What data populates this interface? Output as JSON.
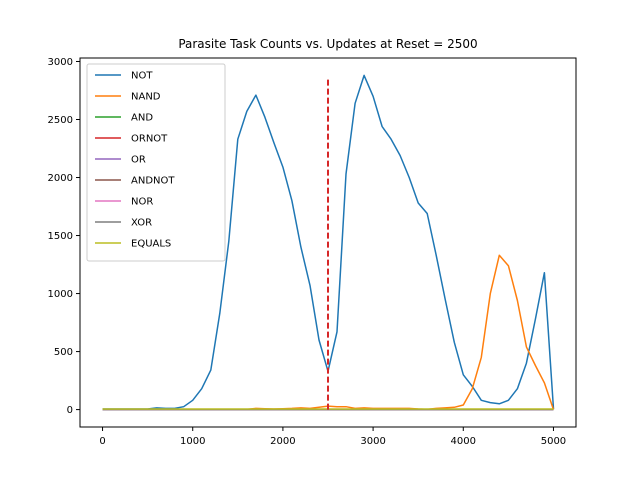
{
  "chart_data": {
    "type": "line",
    "title": "Parasite Task Counts vs. Updates at Reset = 2500",
    "xlabel": "",
    "ylabel": "",
    "xlim": [
      -250,
      5250
    ],
    "ylim": [
      -150,
      3030
    ],
    "xticks": [
      0,
      1000,
      2000,
      3000,
      4000,
      5000
    ],
    "yticks": [
      0,
      500,
      1000,
      1500,
      2000,
      2500,
      3000
    ],
    "grid": false,
    "legend_position": "upper-left",
    "reset_line": {
      "x": 2500,
      "y_range": [
        0,
        2850
      ],
      "color": "#d62728",
      "style": "dashed"
    },
    "x": [
      0,
      100,
      200,
      300,
      400,
      500,
      600,
      700,
      800,
      900,
      1000,
      1100,
      1200,
      1300,
      1400,
      1500,
      1600,
      1700,
      1800,
      1900,
      2000,
      2100,
      2200,
      2300,
      2400,
      2500,
      2600,
      2700,
      2800,
      2900,
      3000,
      3100,
      3200,
      3300,
      3400,
      3500,
      3600,
      3700,
      3800,
      3900,
      4000,
      4100,
      4200,
      4300,
      4400,
      4500,
      4600,
      4700,
      4800,
      4900,
      5000
    ],
    "series": [
      {
        "name": "NOT",
        "color": "#1f77b4",
        "values": [
          5,
          5,
          5,
          5,
          5,
          5,
          15,
          10,
          10,
          25,
          80,
          180,
          340,
          830,
          1450,
          2330,
          2570,
          2710,
          2520,
          2300,
          2090,
          1800,
          1400,
          1070,
          600,
          330,
          670,
          2030,
          2640,
          2880,
          2700,
          2440,
          2330,
          2190,
          2000,
          1780,
          1690,
          1330,
          950,
          580,
          300,
          200,
          80,
          60,
          50,
          80,
          180,
          400,
          780,
          1180,
          5
        ]
      },
      {
        "name": "NAND",
        "color": "#ff7f0e",
        "values": [
          0,
          0,
          0,
          0,
          0,
          0,
          0,
          0,
          0,
          0,
          0,
          0,
          0,
          0,
          0,
          0,
          2,
          10,
          8,
          5,
          8,
          10,
          15,
          10,
          20,
          30,
          25,
          25,
          10,
          15,
          10,
          10,
          10,
          10,
          10,
          5,
          2,
          10,
          15,
          20,
          40,
          180,
          450,
          1000,
          1330,
          1240,
          940,
          540,
          380,
          230,
          0
        ]
      },
      {
        "name": "AND",
        "color": "#2ca02c",
        "values": [
          0,
          0,
          0,
          0,
          0,
          0,
          0,
          0,
          0,
          0,
          0,
          0,
          0,
          0,
          0,
          0,
          0,
          0,
          0,
          0,
          0,
          0,
          0,
          0,
          0,
          0,
          0,
          0,
          0,
          0,
          0,
          0,
          0,
          0,
          0,
          0,
          0,
          0,
          0,
          0,
          0,
          0,
          0,
          0,
          0,
          0,
          0,
          0,
          0,
          0,
          0
        ]
      },
      {
        "name": "ORNOT",
        "color": "#d62728",
        "values": [
          0,
          0,
          0,
          0,
          0,
          0,
          0,
          0,
          0,
          0,
          0,
          0,
          0,
          0,
          0,
          0,
          0,
          0,
          0,
          0,
          0,
          0,
          0,
          0,
          0,
          0,
          0,
          0,
          0,
          0,
          0,
          0,
          0,
          0,
          0,
          0,
          0,
          0,
          0,
          0,
          0,
          0,
          0,
          0,
          0,
          0,
          0,
          0,
          0,
          0,
          0
        ]
      },
      {
        "name": "OR",
        "color": "#9467bd",
        "values": [
          0,
          0,
          0,
          0,
          0,
          0,
          0,
          0,
          0,
          0,
          0,
          0,
          0,
          0,
          0,
          0,
          0,
          0,
          0,
          0,
          0,
          0,
          0,
          0,
          0,
          0,
          0,
          0,
          0,
          0,
          0,
          0,
          0,
          0,
          0,
          0,
          0,
          0,
          0,
          0,
          0,
          0,
          0,
          0,
          0,
          0,
          0,
          0,
          0,
          0,
          0
        ]
      },
      {
        "name": "ANDNOT",
        "color": "#8c564b",
        "values": [
          0,
          0,
          0,
          0,
          0,
          0,
          0,
          0,
          0,
          0,
          0,
          0,
          0,
          0,
          0,
          0,
          0,
          0,
          0,
          0,
          0,
          0,
          0,
          0,
          0,
          0,
          0,
          0,
          0,
          0,
          0,
          0,
          0,
          0,
          0,
          0,
          0,
          0,
          0,
          0,
          0,
          0,
          0,
          0,
          0,
          0,
          0,
          0,
          0,
          0,
          0
        ]
      },
      {
        "name": "NOR",
        "color": "#e377c2",
        "values": [
          0,
          0,
          0,
          0,
          0,
          0,
          0,
          0,
          0,
          0,
          0,
          0,
          0,
          0,
          0,
          0,
          0,
          0,
          0,
          0,
          0,
          0,
          0,
          0,
          0,
          0,
          0,
          0,
          0,
          0,
          0,
          0,
          0,
          0,
          0,
          0,
          0,
          0,
          0,
          0,
          0,
          0,
          0,
          0,
          0,
          0,
          0,
          0,
          0,
          0,
          0
        ]
      },
      {
        "name": "XOR",
        "color": "#7f7f7f",
        "values": [
          0,
          0,
          0,
          0,
          0,
          0,
          0,
          0,
          0,
          0,
          0,
          0,
          0,
          0,
          0,
          0,
          0,
          0,
          0,
          0,
          0,
          0,
          0,
          0,
          0,
          0,
          0,
          0,
          0,
          0,
          0,
          0,
          0,
          0,
          0,
          0,
          0,
          0,
          0,
          0,
          0,
          0,
          0,
          0,
          0,
          0,
          0,
          0,
          0,
          0,
          0
        ]
      },
      {
        "name": "EQUALS",
        "color": "#bcbd22",
        "values": [
          5,
          5,
          5,
          5,
          5,
          5,
          5,
          5,
          5,
          5,
          5,
          5,
          5,
          5,
          5,
          5,
          5,
          5,
          5,
          5,
          5,
          5,
          5,
          5,
          5,
          5,
          5,
          5,
          5,
          5,
          5,
          5,
          5,
          5,
          5,
          5,
          5,
          5,
          5,
          5,
          5,
          5,
          5,
          5,
          5,
          5,
          5,
          5,
          5,
          5,
          5
        ]
      }
    ]
  }
}
